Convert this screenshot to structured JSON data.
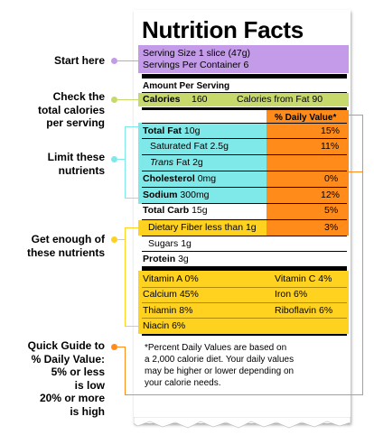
{
  "label": {
    "title": "Nutrition Facts",
    "serving_size": "Serving Size 1 slice (47g)",
    "servings_per_container": "Servings Per Container 6",
    "amount_per_serving": "Amount Per Serving",
    "calories_label": "Calories",
    "calories_value": "160",
    "calories_from_fat": "Calories from Fat 90",
    "daily_value_header": "% Daily Value*",
    "nutrients": [
      {
        "name": "Total Fat",
        "amount": "10g",
        "dv": "15%"
      },
      {
        "name": "Saturated Fat",
        "amount": "2.5g",
        "dv": "11%"
      },
      {
        "name": "Trans",
        "amount": "Fat 2g",
        "dv": ""
      },
      {
        "name": "Cholesterol",
        "amount": "0mg",
        "dv": "0%"
      },
      {
        "name": "Sodium",
        "amount": "300mg",
        "dv": "12%"
      },
      {
        "name": "Total Carb",
        "amount": "15g",
        "dv": "5%"
      },
      {
        "name": "Dietary Fiber less than 1g",
        "amount": "",
        "dv": "3%"
      },
      {
        "name": "Sugars",
        "amount": "1g",
        "dv": ""
      },
      {
        "name": "Protein",
        "amount": "3g",
        "dv": ""
      }
    ],
    "vitamins": [
      {
        "left": "Vitamin A 0%",
        "right": "Vitamin C 4%"
      },
      {
        "left": "Calcium 45%",
        "right": "Iron 6%"
      },
      {
        "left": "Thiamin 8%",
        "right": "Riboflavin 6%"
      },
      {
        "left": "Niacin 6%",
        "right": ""
      }
    ],
    "footnote": [
      "*Percent Daily Values are based on",
      "a 2,000 calorie diet. Your daily values",
      "may be higher or lower depending on",
      "your calorie needs."
    ]
  },
  "annotations": {
    "start": "Start here",
    "calories": [
      "Check the",
      "total calories",
      "per serving"
    ],
    "limit": [
      "Limit these",
      "nutrients"
    ],
    "enough": [
      "Get enough of",
      "these nutrients"
    ],
    "guide": [
      "Quick Guide to",
      "% Daily Value:",
      "5% or less",
      "is low",
      "20% or more",
      "is high"
    ]
  },
  "colors": {
    "serving": "#c39be8",
    "calories": "#c6d96a",
    "limit": "#7fe8e8",
    "daily_value": "#ff8c1a",
    "enough": "#ffd21f"
  }
}
